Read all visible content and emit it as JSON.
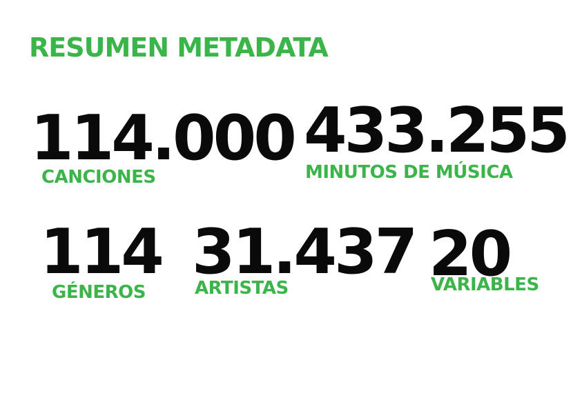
{
  "theme": {
    "accent": "#3bb54a",
    "number_color": "#0a0a0a",
    "background": "#ffffff"
  },
  "title": "RESUMEN METADATA",
  "stats": {
    "canciones": {
      "value": "114.000",
      "label": "CANCIONES"
    },
    "minutos": {
      "value": "433.255",
      "label": "MINUTOS DE MÚSICA"
    },
    "generos": {
      "value": "114",
      "label": "GÉNEROS"
    },
    "artistas": {
      "value": "31.437",
      "label": "ARTISTAS"
    },
    "variables": {
      "value": "20",
      "label": "VARIABLES"
    }
  }
}
